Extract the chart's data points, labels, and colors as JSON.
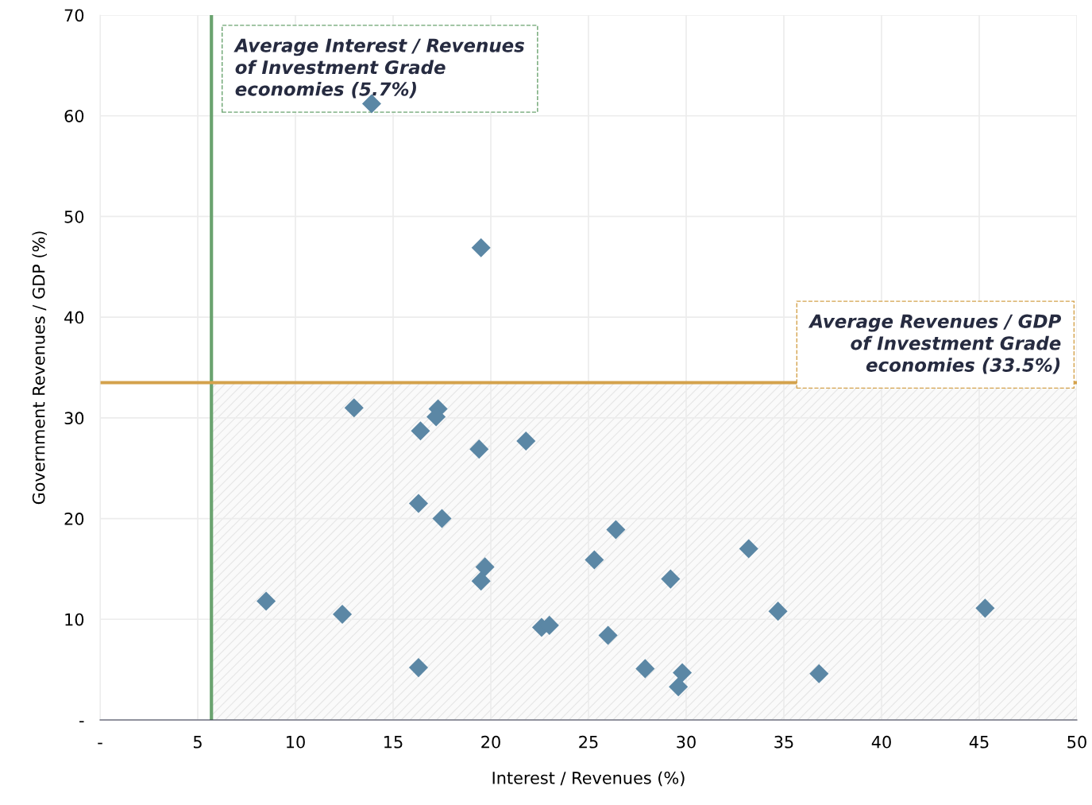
{
  "chart_data": {
    "type": "scatter",
    "xlabel": "Interest / Revenues (%)",
    "ylabel": "Government Revenues / GDP (%)",
    "series": [
      {
        "color": "#5b87a5",
        "x": [
          13.9,
          19.5,
          13.0,
          17.3,
          17.2,
          16.4,
          19.4,
          21.8,
          16.3,
          17.5,
          19.7,
          19.5,
          8.5,
          12.4,
          22.6,
          23.0,
          16.3,
          26.4,
          25.3,
          29.2,
          33.2,
          34.7,
          26.0,
          27.9,
          29.8,
          29.6,
          36.8,
          45.3
        ],
        "values": [
          61.2,
          46.9,
          31.0,
          30.9,
          30.1,
          28.7,
          26.9,
          27.7,
          21.5,
          20.0,
          15.2,
          13.8,
          11.8,
          10.5,
          9.2,
          9.4,
          5.2,
          18.9,
          15.9,
          14.0,
          17.0,
          10.8,
          8.4,
          5.1,
          4.7,
          3.3,
          4.6,
          11.1
        ]
      }
    ],
    "marker": "diamond",
    "xlim": [
      0,
      50
    ],
    "xticks": [
      {
        "value": 0,
        "label": "-"
      },
      5,
      10,
      15,
      20,
      25,
      30,
      35,
      40,
      45,
      50
    ],
    "ylim": [
      0,
      70
    ],
    "yticks": [
      {
        "value": 0,
        "label": "-"
      },
      10,
      20,
      30,
      40,
      50,
      60,
      70
    ],
    "grid": true,
    "ref_lines": [
      {
        "axis": "x",
        "value": 5.7,
        "label": "Average Interest / Revenues\nof Investment Grade\neconomies (5.7%)",
        "color": "#6aa36f"
      },
      {
        "axis": "y",
        "value": 33.5,
        "label": "Average Revenues / GDP\nof Investment Grade\neconomies (33.5%)",
        "color": "#d4a24c"
      }
    ],
    "bands": [
      {
        "axis": "y",
        "from": 0,
        "to": 33.5,
        "color": "#e6e6e6"
      }
    ]
  }
}
